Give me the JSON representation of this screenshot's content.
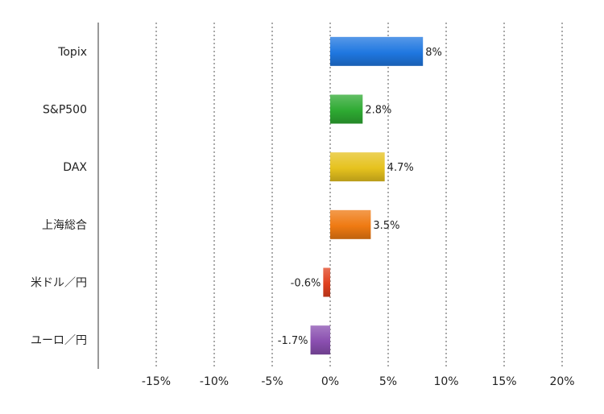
{
  "chart_data": {
    "type": "bar",
    "orientation": "horizontal",
    "categories": [
      "Topix",
      "S&P500",
      "DAX",
      "上海総合",
      "米ドル／円",
      "ユーロ／円"
    ],
    "values": [
      8,
      2.8,
      4.7,
      3.5,
      -0.6,
      -1.7
    ],
    "data_labels": [
      "8%",
      "2.8%",
      "4.7%",
      "3.5%",
      "-0.6%",
      "-1.7%"
    ],
    "colors": [
      "#1f77e0",
      "#2eaa32",
      "#e6c21e",
      "#ef7a12",
      "#e0401e",
      "#8a4fb0"
    ],
    "xlim": [
      -20,
      20
    ],
    "xticks": [
      -15,
      -10,
      -5,
      0,
      5,
      10,
      15,
      20
    ],
    "xtick_labels": [
      "-15%",
      "-10%",
      "-5%",
      "0%",
      "5%",
      "10%",
      "15%",
      "20%"
    ],
    "grid": true,
    "title": "",
    "xlabel": "",
    "ylabel": ""
  }
}
